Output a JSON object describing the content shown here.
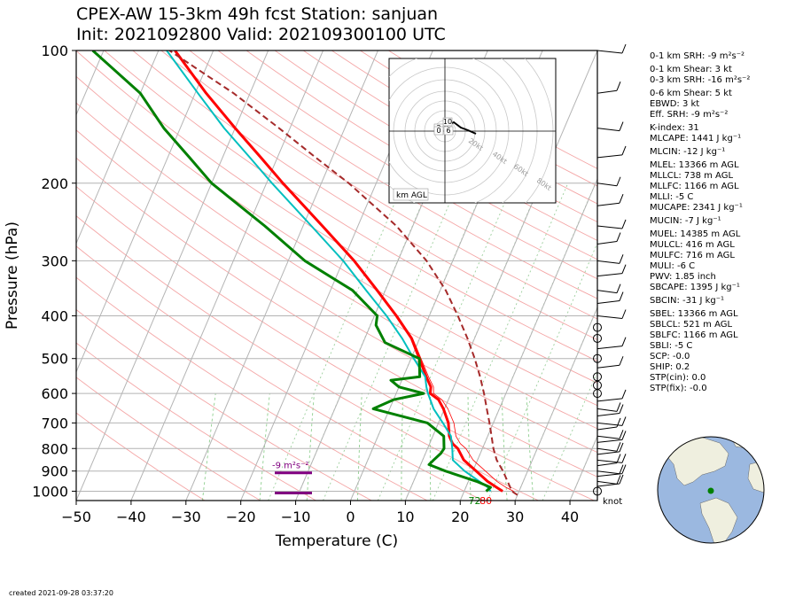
{
  "title": {
    "line1": "CPEX-AW 15-3km  49h fcst  Station: sanjuan",
    "line2": "Init: 2021092800  Valid: 202109300100 UTC"
  },
  "created": "created 2021-09-28 03:37:20",
  "chart_data": {
    "type": "skew-t",
    "xlabel": "Temperature (C)",
    "ylabel": "Pressure (hPa)",
    "x_ticks": [
      -50,
      -40,
      -30,
      -20,
      -10,
      0,
      10,
      20,
      30,
      40
    ],
    "y_ticks": [
      100,
      200,
      300,
      400,
      500,
      600,
      700,
      800,
      900,
      1000
    ],
    "xlim": [
      -50,
      45
    ],
    "ylim": [
      1050,
      100
    ],
    "y_scale": "log",
    "grid": true,
    "series": [
      {
        "key": "temperature",
        "color": "#ff0000",
        "points": [
          [
            1000,
            27
          ],
          [
            980,
            25.6
          ],
          [
            950,
            23.5
          ],
          [
            900,
            20.6
          ],
          [
            850,
            17.5
          ],
          [
            800,
            15.5
          ],
          [
            780,
            14.2
          ],
          [
            750,
            13
          ],
          [
            700,
            11.8
          ],
          [
            650,
            9.8
          ],
          [
            620,
            8.2
          ],
          [
            600,
            6.2
          ],
          [
            580,
            5.8
          ],
          [
            550,
            4.2
          ],
          [
            500,
            1.5
          ],
          [
            450,
            -1.5
          ],
          [
            400,
            -6
          ],
          [
            350,
            -11.5
          ],
          [
            300,
            -18
          ],
          [
            250,
            -26.5
          ],
          [
            200,
            -37
          ],
          [
            175,
            -43
          ],
          [
            150,
            -50
          ],
          [
            125,
            -58
          ],
          [
            100,
            -67
          ]
        ]
      },
      {
        "key": "virtual_temperature",
        "color": "#ff0000",
        "points": [
          [
            1000,
            29
          ],
          [
            980,
            27.3
          ],
          [
            950,
            25.2
          ],
          [
            900,
            22.3
          ],
          [
            850,
            19.2
          ],
          [
            800,
            17
          ],
          [
            780,
            15.6
          ],
          [
            750,
            14.2
          ],
          [
            700,
            12.8
          ],
          [
            650,
            10.6
          ],
          [
            620,
            8.8
          ],
          [
            600,
            6.8
          ],
          [
            580,
            6.3
          ],
          [
            550,
            4.6
          ],
          [
            500,
            1.8
          ],
          [
            450,
            -1.3
          ],
          [
            400,
            -5.8
          ],
          [
            350,
            -11.4
          ],
          [
            300,
            -17.9
          ],
          [
            250,
            -26.4
          ],
          [
            200,
            -36.9
          ],
          [
            175,
            -42.9
          ],
          [
            150,
            -49.9
          ],
          [
            125,
            -57.9
          ],
          [
            100,
            -66.9
          ]
        ]
      },
      {
        "key": "wetbulb",
        "color": "#00bfbf",
        "points": [
          [
            1000,
            24.8
          ],
          [
            980,
            24
          ],
          [
            950,
            22
          ],
          [
            900,
            18.5
          ],
          [
            850,
            15.5
          ],
          [
            800,
            14.5
          ],
          [
            750,
            13.3
          ],
          [
            700,
            10.8
          ],
          [
            650,
            8
          ],
          [
            600,
            5.8
          ],
          [
            580,
            5
          ],
          [
            550,
            4
          ],
          [
            500,
            0.5
          ],
          [
            450,
            -3.2
          ],
          [
            400,
            -7.8
          ],
          [
            350,
            -13.5
          ],
          [
            300,
            -20
          ],
          [
            250,
            -28.5
          ],
          [
            200,
            -39
          ],
          [
            175,
            -45
          ],
          [
            150,
            -52
          ],
          [
            125,
            -59.5
          ],
          [
            100,
            -68.5
          ]
        ]
      },
      {
        "key": "dewpoint",
        "color": "#008000",
        "points": [
          [
            1000,
            24
          ],
          [
            980,
            24.5
          ],
          [
            950,
            21.5
          ],
          [
            900,
            15
          ],
          [
            870,
            11.5
          ],
          [
            850,
            12
          ],
          [
            820,
            12.8
          ],
          [
            800,
            13
          ],
          [
            750,
            12
          ],
          [
            700,
            8
          ],
          [
            650,
            -3
          ],
          [
            620,
            0
          ],
          [
            600,
            5
          ],
          [
            580,
            0
          ],
          [
            560,
            -2
          ],
          [
            550,
            3
          ],
          [
            500,
            1.5
          ],
          [
            460,
            -6
          ],
          [
            420,
            -9
          ],
          [
            400,
            -9.5
          ],
          [
            350,
            -16
          ],
          [
            300,
            -27
          ],
          [
            250,
            -37
          ],
          [
            200,
            -50
          ],
          [
            175,
            -56
          ],
          [
            150,
            -63
          ],
          [
            125,
            -70
          ],
          [
            100,
            -82
          ]
        ]
      },
      {
        "key": "parcel",
        "color": "#a52a2a",
        "points": [
          [
            1020,
            30
          ],
          [
            1000,
            28.7
          ],
          [
            900,
            25.5
          ],
          [
            850,
            23.5
          ],
          [
            800,
            22
          ],
          [
            750,
            20.7
          ],
          [
            700,
            19.3
          ],
          [
            650,
            17.7
          ],
          [
            600,
            16
          ],
          [
            550,
            14
          ],
          [
            500,
            11.6
          ],
          [
            450,
            8.7
          ],
          [
            400,
            5.2
          ],
          [
            350,
            1
          ],
          [
            300,
            -4.8
          ],
          [
            250,
            -13
          ],
          [
            200,
            -25
          ],
          [
            175,
            -33
          ],
          [
            150,
            -42
          ],
          [
            125,
            -53
          ],
          [
            100,
            -68
          ]
        ]
      }
    ],
    "surface_labels": {
      "dewpoint_f": "72",
      "temperature_f": "80"
    },
    "srh_labels": [
      {
        "pressure": 900,
        "text": "-9 m²s⁻²"
      },
      {
        "pressure": 1000,
        "text": ""
      }
    ],
    "wind_barbs": {
      "unit": "knot",
      "levels": [
        1000,
        975,
        950,
        925,
        900,
        875,
        850,
        825,
        800,
        775,
        750,
        725,
        700,
        675,
        650,
        625,
        600,
        575,
        550,
        525,
        500,
        475,
        450,
        425,
        400,
        375,
        350,
        325,
        300,
        275,
        250,
        225,
        200,
        175,
        150,
        125,
        100
      ],
      "calm_levels": [
        1000,
        600,
        575,
        550,
        500,
        450,
        425
      ]
    },
    "hodograph": {
      "rings_kt": [
        20,
        40,
        60,
        80
      ],
      "ring_labels": [
        "20kt",
        "40kt",
        "60kt",
        "80kt"
      ],
      "height_labels": [
        "10",
        "2",
        "6",
        "0"
      ],
      "legend": "km AGL"
    },
    "indices": [
      "0-1 km SRH: -9 m²s⁻²",
      "0-1 km Shear: 3 kt",
      "0-3 km SRH: -16 m²s⁻²",
      "0-6 km Shear: 5 kt",
      "EBWD: 3 kt",
      "Eff. SRH: -9 m²s⁻²",
      "K-index: 31",
      "MLCAPE: 1441 J kg⁻¹",
      "MLCIN: -12 J kg⁻¹",
      "MLEL: 13366 m AGL",
      "MLLCL: 738 m AGL",
      "MLLFC: 1166 m AGL",
      "MLLI: -5 C",
      "MUCAPE: 2341 J kg⁻¹",
      "MUCIN: -7 J kg⁻¹",
      "MUEL: 14385 m AGL",
      "MULCL: 416 m AGL",
      "MULFC: 716 m AGL",
      "MULI: -6 C",
      "PWV: 1.85 inch",
      "SBCAPE: 1395 J kg⁻¹",
      "SBCIN: -31 J kg⁻¹",
      "SBEL: 13366 m AGL",
      "SBLCL: 521 m AGL",
      "SBLFC: 1166 m AGL",
      "SBLI: -5 C",
      "SCP: -0.0",
      "SHIP: 0.2",
      "STP(cin): 0.0",
      "STP(fix): -0.0"
    ],
    "globe": {
      "ocean_color": "#9bb8e0",
      "land_color": "#efefdf",
      "marker_color": "#008000"
    }
  }
}
